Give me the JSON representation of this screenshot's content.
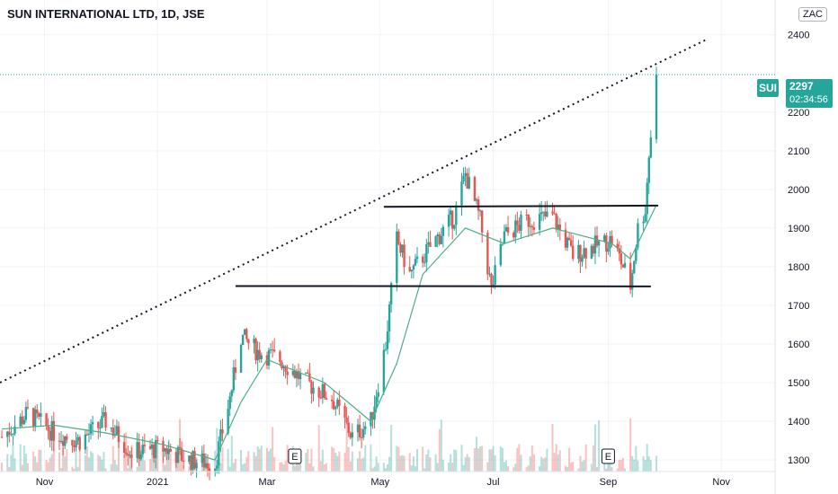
{
  "title": "SUN INTERNATIONAL LTD, 1D, JSE",
  "currency": "ZAC",
  "last_price": {
    "symbol": "SUI",
    "value": "2297",
    "countdown": "02:34:56"
  },
  "colors": {
    "up": "#26a69a",
    "down": "#ef5350",
    "ma": "#4caf84",
    "grid": "#f0f3fa",
    "last_line": "#26a69a"
  },
  "chart_data": {
    "type": "candlestick",
    "x_axis": {
      "tick_labels": [
        "Nov",
        "2021",
        "Mar",
        "May",
        "Jul",
        "Sep",
        "Nov"
      ],
      "tick_dates": [
        "2020-11-01",
        "2021-01-01",
        "2021-03-01",
        "2021-05-01",
        "2021-07-01",
        "2021-09-01",
        "2021-11-01"
      ],
      "range": [
        "2020-10-08",
        "2021-11-30"
      ]
    },
    "y_axis": {
      "tick_labels": [
        "1300",
        "1400",
        "1500",
        "1600",
        "1700",
        "1800",
        "1900",
        "2000",
        "2100",
        "2200",
        "2400"
      ],
      "range": [
        1270,
        2490
      ],
      "position": "right"
    },
    "grid": true,
    "price_series": [
      {
        "date": "2020-10-09",
        "close": 1360
      },
      {
        "date": "2020-10-23",
        "close": 1420
      },
      {
        "date": "2020-11-06",
        "close": 1370
      },
      {
        "date": "2020-11-20",
        "close": 1350
      },
      {
        "date": "2020-12-04",
        "close": 1400
      },
      {
        "date": "2020-12-18",
        "close": 1320
      },
      {
        "date": "2021-01-04",
        "close": 1330
      },
      {
        "date": "2021-01-18",
        "close": 1300
      },
      {
        "date": "2021-02-01",
        "close": 1290
      },
      {
        "date": "2021-02-09",
        "close": 1460
      },
      {
        "date": "2021-02-15",
        "close": 1620
      },
      {
        "date": "2021-02-24",
        "close": 1580
      },
      {
        "date": "2021-03-08",
        "close": 1560
      },
      {
        "date": "2021-03-22",
        "close": 1500
      },
      {
        "date": "2021-04-05",
        "close": 1460
      },
      {
        "date": "2021-04-16",
        "close": 1360
      },
      {
        "date": "2021-04-26",
        "close": 1400
      },
      {
        "date": "2021-05-04",
        "close": 1600
      },
      {
        "date": "2021-05-10",
        "close": 1870
      },
      {
        "date": "2021-05-17",
        "close": 1780
      },
      {
        "date": "2021-05-31",
        "close": 1870
      },
      {
        "date": "2021-06-10",
        "close": 1930
      },
      {
        "date": "2021-06-16",
        "close": 2040
      },
      {
        "date": "2021-06-24",
        "close": 1920
      },
      {
        "date": "2021-06-30",
        "close": 1740
      },
      {
        "date": "2021-07-07",
        "close": 1880
      },
      {
        "date": "2021-07-19",
        "close": 1920
      },
      {
        "date": "2021-08-02",
        "close": 1930
      },
      {
        "date": "2021-08-13",
        "close": 1830
      },
      {
        "date": "2021-08-23",
        "close": 1850
      },
      {
        "date": "2021-09-03",
        "close": 1870
      },
      {
        "date": "2021-09-10",
        "close": 1790
      },
      {
        "date": "2021-09-13",
        "close": 1750
      },
      {
        "date": "2021-09-17",
        "close": 1900
      },
      {
        "date": "2021-09-21",
        "close": 1950
      },
      {
        "date": "2021-09-23",
        "close": 2090
      },
      {
        "date": "2021-09-27",
        "close": 2297
      }
    ],
    "moving_average": [
      {
        "date": "2020-10-09",
        "value": 1380
      },
      {
        "date": "2020-11-06",
        "value": 1390
      },
      {
        "date": "2020-12-04",
        "value": 1370
      },
      {
        "date": "2021-01-04",
        "value": 1340
      },
      {
        "date": "2021-02-01",
        "value": 1300
      },
      {
        "date": "2021-02-15",
        "value": 1450
      },
      {
        "date": "2021-03-01",
        "value": 1560
      },
      {
        "date": "2021-04-01",
        "value": 1500
      },
      {
        "date": "2021-04-26",
        "value": 1400
      },
      {
        "date": "2021-05-10",
        "value": 1550
      },
      {
        "date": "2021-05-24",
        "value": 1780
      },
      {
        "date": "2021-06-16",
        "value": 1900
      },
      {
        "date": "2021-07-07",
        "value": 1860
      },
      {
        "date": "2021-08-02",
        "value": 1900
      },
      {
        "date": "2021-09-03",
        "value": 1860
      },
      {
        "date": "2021-09-13",
        "value": 1820
      },
      {
        "date": "2021-09-21",
        "value": 1900
      },
      {
        "date": "2021-09-27",
        "value": 1960
      }
    ],
    "lines": [
      {
        "name": "resistance",
        "style": "solid",
        "from": {
          "date": "2021-05-03",
          "value": 1955
        },
        "to": {
          "date": "2021-09-28",
          "value": 1958
        }
      },
      {
        "name": "support",
        "style": "solid",
        "from": {
          "date": "2021-02-12",
          "value": 1750
        },
        "to": {
          "date": "2021-09-24",
          "value": 1749
        }
      },
      {
        "name": "trendline",
        "style": "dotted",
        "from": {
          "date": "2020-10-08",
          "value": 1500
        },
        "to": {
          "date": "2021-10-25",
          "value": 2390
        }
      }
    ],
    "markers": [
      {
        "label": "E",
        "date": "2021-03-16"
      },
      {
        "label": "E",
        "date": "2021-09-01"
      }
    ],
    "volume_visible": true
  }
}
